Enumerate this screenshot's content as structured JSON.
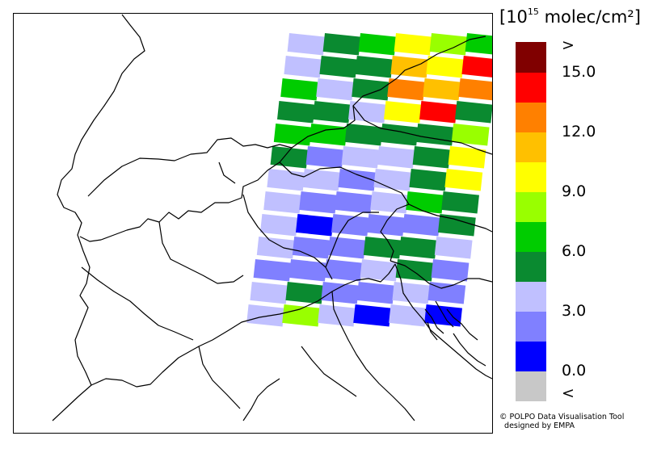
{
  "legend": {
    "title_open": "[10",
    "title_exp": "15",
    "title_close": " molec/cm²]",
    "colors": [
      "#c8c8c8",
      "#0000ff",
      "#8080ff",
      "#c0c0ff",
      "#0a8a30",
      "#00cc00",
      "#99ff00",
      "#ffff00",
      "#ffc000",
      "#ff8000",
      "#ff0000",
      "#800000"
    ],
    "labels": [
      ">",
      "15.0",
      "12.0",
      "9.0",
      "6.0",
      "3.0",
      "0.0",
      "<"
    ]
  },
  "credit": {
    "line1": "© POLPO Data Visualisation Tool",
    "line2": "  designed by EMPA"
  },
  "swath": {
    "grid": [
      [
        "#c0c0ff",
        "#0a8a30",
        "#00cc00",
        "#ffff00",
        "#99ff00",
        "#00cc00"
      ],
      [
        "#c0c0ff",
        "#0a8a30",
        "#0a8a30",
        "#ffc000",
        "#ffff00",
        "#ff0000"
      ],
      [
        "#00cc00",
        "#c0c0ff",
        "#0a8a30",
        "#ff8000",
        "#ffc000",
        "#ff8000"
      ],
      [
        "#0a8a30",
        "#0a8a30",
        "#c0c0ff",
        "#ffff00",
        "#ff0000",
        "#0a8a30"
      ],
      [
        "#00cc00",
        "#00cc00",
        "#0a8a30",
        "#0a8a30",
        "#0a8a30",
        "#99ff00"
      ],
      [
        "#0a8a30",
        "#8080ff",
        "#c0c0ff",
        "#c0c0ff",
        "#0a8a30",
        "#ffff00"
      ],
      [
        "#c0c0ff",
        "#c0c0ff",
        "#8080ff",
        "#c0c0ff",
        "#0a8a30",
        "#ffff00"
      ],
      [
        "#c0c0ff",
        "#8080ff",
        "#8080ff",
        "#c0c0ff",
        "#00cc00",
        "#0a8a30"
      ],
      [
        "#c0c0ff",
        "#0000ff",
        "#8080ff",
        "#8080ff",
        "#8080ff",
        "#0a8a30"
      ],
      [
        "#c0c0ff",
        "#8080ff",
        "#8080ff",
        "#0a8a30",
        "#0a8a30",
        "#c0c0ff"
      ],
      [
        "#8080ff",
        "#8080ff",
        "#8080ff",
        "#c0c0ff",
        "#0a8a30",
        "#8080ff"
      ],
      [
        "#c0c0ff",
        "#0a8a30",
        "#8080ff",
        "#8080ff",
        "#c0c0ff",
        "#8080ff"
      ],
      [
        "#c0c0ff",
        "#99ff00",
        "#c0c0ff",
        "#0000ff",
        "#c0c0ff",
        "#0000ff"
      ]
    ]
  }
}
